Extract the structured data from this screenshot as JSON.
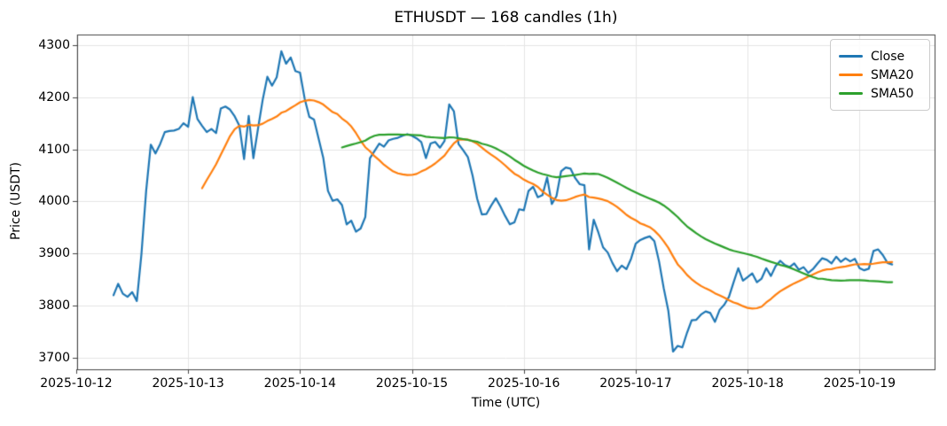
{
  "chart_data": {
    "type": "line",
    "title": "ETHUSDT — 168 candles (1h)",
    "xlabel": "Time (UTC)",
    "ylabel": "Price (USDT)",
    "grid": true,
    "legend": {
      "position": "upper right",
      "entries": [
        "Close",
        "SMA20",
        "SMA50"
      ]
    },
    "x_tick_labels": [
      "2025-10-12",
      "2025-10-13",
      "2025-10-14",
      "2025-10-15",
      "2025-10-16",
      "2025-10-17",
      "2025-10-18",
      "2025-10-19"
    ],
    "y_ticks": [
      3700,
      3800,
      3900,
      4000,
      4100,
      4200,
      4300
    ],
    "axis": {
      "x_unit": "hours from first candle",
      "x_tick_hours": [
        -8,
        16,
        40,
        64,
        88,
        112,
        136,
        160
      ],
      "x_range": [
        -7.8,
        176.1
      ],
      "y_range": [
        3678,
        4320
      ]
    },
    "colors": {
      "close": "#1f77b4",
      "sma20": "#ff7f0e",
      "sma50": "#2ca02c",
      "grid": "#e5e5e5",
      "spine": "#454545"
    },
    "series": [
      {
        "name": "Close",
        "color": "#1f77b4",
        "kind": "raw"
      },
      {
        "name": "SMA20",
        "color": "#ff7f0e",
        "kind": "sma",
        "window": 20
      },
      {
        "name": "SMA50",
        "color": "#2ca02c",
        "kind": "sma",
        "window": 50
      }
    ],
    "close": [
      3820,
      3842,
      3823,
      3817,
      3826,
      3809,
      3900,
      4020,
      4109,
      4092,
      4110,
      4133,
      4135,
      4136,
      4139,
      4150,
      4143,
      4200,
      4158,
      4145,
      4133,
      4139,
      4131,
      4178,
      4182,
      4176,
      4163,
      4145,
      4081,
      4164,
      4083,
      4140,
      4195,
      4239,
      4222,
      4238,
      4288,
      4264,
      4276,
      4250,
      4247,
      4197,
      4162,
      4157,
      4120,
      4083,
      4020,
      4001,
      4004,
      3993,
      3956,
      3963,
      3942,
      3948,
      3970,
      4083,
      4097,
      4111,
      4105,
      4117,
      4120,
      4122,
      4126,
      4129,
      4126,
      4121,
      4114,
      4083,
      4111,
      4114,
      4103,
      4116,
      4186,
      4173,
      4110,
      4098,
      4085,
      4050,
      4005,
      3975,
      3976,
      3992,
      4006,
      3990,
      3972,
      3956,
      3960,
      3985,
      3983,
      4020,
      4028,
      4008,
      4012,
      4046,
      3995,
      4010,
      4058,
      4065,
      4063,
      4045,
      4033,
      4031,
      3908,
      3965,
      3940,
      3912,
      3902,
      3882,
      3866,
      3877,
      3870,
      3890,
      3919,
      3926,
      3930,
      3933,
      3924,
      3885,
      3834,
      3790,
      3712,
      3723,
      3720,
      3748,
      3772,
      3773,
      3783,
      3789,
      3786,
      3769,
      3792,
      3802,
      3817,
      3845,
      3872,
      3848,
      3855,
      3862,
      3845,
      3852,
      3872,
      3857,
      3876,
      3886,
      3878,
      3874,
      3881,
      3869,
      3874,
      3863,
      3870,
      3881,
      3891,
      3888,
      3881,
      3894,
      3884,
      3891,
      3885,
      3890,
      3872,
      3868,
      3871,
      3905,
      3908,
      3897,
      3882,
      3879
    ]
  }
}
